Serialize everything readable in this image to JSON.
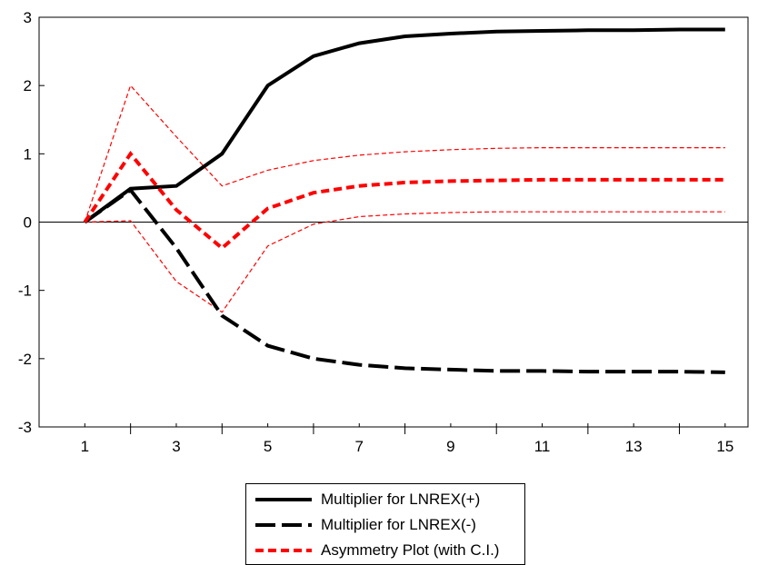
{
  "chart_data": {
    "type": "line",
    "x": [
      1,
      2,
      3,
      4,
      5,
      6,
      7,
      8,
      9,
      10,
      11,
      12,
      13,
      14,
      15
    ],
    "x_tick_labels": [
      "1",
      "3",
      "5",
      "7",
      "9",
      "11",
      "13",
      "15"
    ],
    "y_tick_labels": [
      "3",
      "2",
      "1",
      "0",
      "-1",
      "-2",
      "-3"
    ],
    "xlim": [
      0,
      15.5
    ],
    "ylim": [
      -3,
      3
    ],
    "zero_line": true,
    "grid": false,
    "legend_position": "bottom-center",
    "series": [
      {
        "name": "Multiplier for LNREX(+)",
        "style": "solid",
        "color": "#000000",
        "values": [
          0,
          0.49,
          0.53,
          1.0,
          2.0,
          2.43,
          2.62,
          2.72,
          2.76,
          2.79,
          2.8,
          2.81,
          2.81,
          2.82,
          2.82
        ]
      },
      {
        "name": "Multiplier for LNREX(-)",
        "style": "long-dash",
        "color": "#000000",
        "values": [
          0,
          0.47,
          -0.38,
          -1.37,
          -1.81,
          -2.0,
          -2.09,
          -2.14,
          -2.16,
          -2.18,
          -2.18,
          -2.19,
          -2.19,
          -2.19,
          -2.2
        ]
      },
      {
        "name": "Asymmetry Plot (with C.I.)",
        "style": "short-dash",
        "color": "#ff0000",
        "values": [
          0,
          1.0,
          0.18,
          -0.38,
          0.2,
          0.43,
          0.53,
          0.58,
          0.6,
          0.61,
          0.62,
          0.62,
          0.62,
          0.62,
          0.62
        ]
      },
      {
        "role": "upper-ci",
        "style": "thin-dash",
        "color": "#ff0000",
        "values": [
          0,
          2.0,
          1.25,
          0.53,
          0.76,
          0.9,
          0.98,
          1.03,
          1.06,
          1.08,
          1.09,
          1.09,
          1.09,
          1.09,
          1.09
        ]
      },
      {
        "role": "lower-ci",
        "style": "thin-dash",
        "color": "#ff0000",
        "values": [
          0,
          0.02,
          -0.87,
          -1.32,
          -0.35,
          -0.03,
          0.08,
          0.12,
          0.14,
          0.15,
          0.15,
          0.15,
          0.15,
          0.15,
          0.15
        ]
      }
    ]
  },
  "legend": {
    "items": [
      {
        "label": "Multiplier for LNREX(+)",
        "style": "solid",
        "color": "#000000"
      },
      {
        "label": "Multiplier for LNREX(-)",
        "style": "long-dash",
        "color": "#000000"
      },
      {
        "label": "Asymmetry Plot (with C.I.)",
        "style": "short-dash",
        "color": "#ff0000"
      }
    ]
  }
}
